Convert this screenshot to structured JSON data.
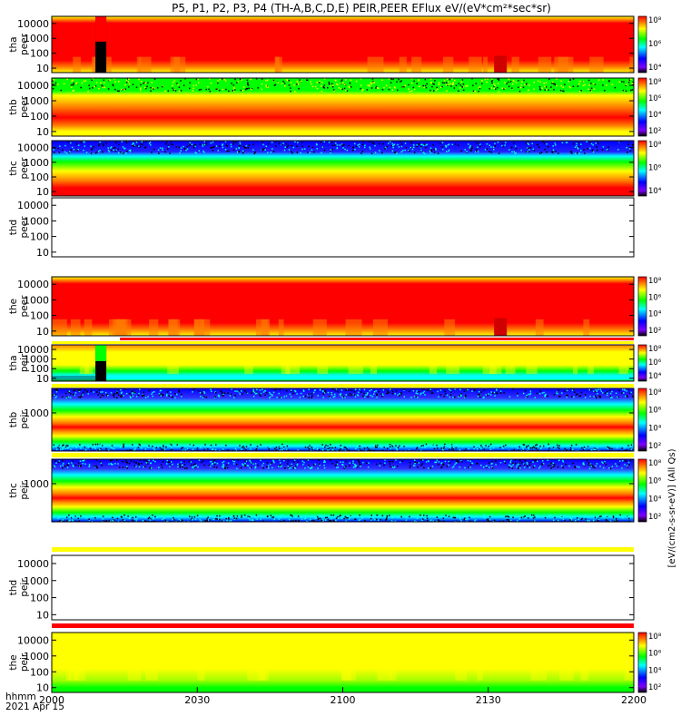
{
  "title": "P5, P1, P2, P3, P4 (TH-A,B,C,D,E) PEIR,PEER EFlux eV/(eV*cm²*sec*sr)",
  "time_axis": {
    "row_label_1": "hhmm",
    "row_label_2": "2021 Apr 15",
    "ticks": [
      "2000",
      "2030",
      "2100",
      "2130",
      "2200"
    ]
  },
  "colorbar_axis_label": "[eV/(cm2-s-sr-eV)] (All Qs)",
  "colorbar_ticks": [
    "10⁸",
    "10⁶",
    "10⁴",
    "10²"
  ],
  "colorbar_ticks_alt": [
    "10⁸",
    "10⁷",
    "10⁶",
    "10⁵",
    "10⁴",
    "10³",
    "10²"
  ],
  "colors": {
    "red": "#ff0000",
    "orange": "#ff7f00",
    "yellow": "#ffff00",
    "green": "#00ff00",
    "cyan": "#00ffff",
    "blue": "#0000ff",
    "black": "#000000"
  },
  "chart_data": [
    {
      "type": "heatmap",
      "panel": "tha-peer",
      "ylabel": "tha peer",
      "yticks": [
        "10000",
        "1000",
        "100",
        "10"
      ],
      "style": "dense_red",
      "x_range": [
        "2000",
        "2200"
      ],
      "y_scale": "log",
      "y_range": [
        5,
        30000
      ]
    },
    {
      "type": "heatmap",
      "panel": "thb-peer",
      "ylabel": "thb peer",
      "yticks": [
        "10000",
        "1000",
        "100",
        "10"
      ],
      "style": "bands_speckle_top",
      "x_range": [
        "2000",
        "2200"
      ],
      "y_scale": "log",
      "y_range": [
        5,
        30000
      ]
    },
    {
      "type": "heatmap",
      "panel": "thc-peer",
      "ylabel": "thc peer",
      "yticks": [
        "10000",
        "1000",
        "100",
        "10"
      ],
      "style": "bands_blue_top",
      "x_range": [
        "2000",
        "2200"
      ],
      "y_scale": "log",
      "y_range": [
        5,
        30000
      ]
    },
    {
      "type": "heatmap",
      "panel": "thd-peer",
      "ylabel": "thd peer",
      "yticks": [
        "10000",
        "1000",
        "100",
        "10"
      ],
      "style": "empty",
      "x_range": [
        "2000",
        "2200"
      ],
      "y_scale": "log",
      "y_range": [
        5,
        30000
      ]
    },
    {
      "type": "heatmap",
      "panel": "the-peer",
      "ylabel": "the peer",
      "yticks": [
        "10000",
        "1000",
        "100",
        "10"
      ],
      "style": "dense_red",
      "x_range": [
        "2000",
        "2200"
      ],
      "y_scale": "log",
      "y_range": [
        5,
        30000
      ]
    },
    {
      "type": "heatmap",
      "panel": "tha-peir",
      "ylabel": "tha peir",
      "yticks": [
        "10000",
        "1000",
        "100",
        "10"
      ],
      "style": "ion_yellow",
      "x_range": [
        "2000",
        "2200"
      ],
      "y_scale": "log",
      "y_range": [
        5,
        30000
      ]
    },
    {
      "type": "heatmap",
      "panel": "thb-peir",
      "ylabel": "thb peir",
      "yticks": [
        "1000"
      ],
      "style": "ion_bands",
      "x_range": [
        "2000",
        "2200"
      ],
      "y_scale": "log",
      "y_range": [
        5,
        30000
      ]
    },
    {
      "type": "heatmap",
      "panel": "thc-peir",
      "ylabel": "thc peir",
      "yticks": [
        "1000"
      ],
      "style": "ion_bands",
      "x_range": [
        "2000",
        "2200"
      ],
      "y_scale": "log",
      "y_range": [
        5,
        30000
      ]
    },
    {
      "type": "heatmap",
      "panel": "thd-peir",
      "ylabel": "thd peir",
      "yticks": [
        "10000",
        "1000",
        "100",
        "10"
      ],
      "style": "empty",
      "x_range": [
        "2000",
        "2200"
      ],
      "y_scale": "log",
      "y_range": [
        5,
        30000
      ]
    },
    {
      "type": "heatmap",
      "panel": "the-peir",
      "ylabel": "the peir",
      "yticks": [
        "10000",
        "1000",
        "100",
        "10"
      ],
      "style": "ion_yellow_light",
      "x_range": [
        "2000",
        "2200"
      ],
      "y_scale": "log",
      "y_range": [
        5,
        30000
      ]
    }
  ]
}
